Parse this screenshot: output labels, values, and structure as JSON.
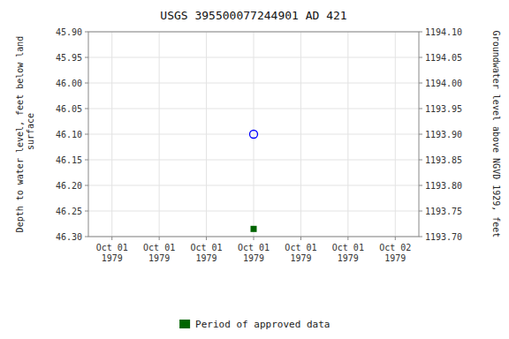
{
  "chart_data": {
    "type": "scatter",
    "title": "USGS 395500077244901 AD   421",
    "y_label": "Depth to water level, feet below land\n surface",
    "y2_label": "Groundwater level above NGVD 1929, feet",
    "categories": [
      "Oct 01\n1979",
      "Oct 01\n1979",
      "Oct 01\n1979",
      "Oct 01\n1979",
      "Oct 01\n1979",
      "Oct 01\n1979",
      "Oct 02\n1979"
    ],
    "ylim": [
      46.3,
      45.9
    ],
    "yticks": [
      {
        "value": 45.9,
        "label": "45.90"
      },
      45.95,
      {
        "value": 46.0,
        "label": "46.00"
      },
      46.05,
      {
        "value": 46.1,
        "label": "46.10"
      },
      46.15,
      {
        "value": 46.2,
        "label": "46.20"
      },
      46.25,
      {
        "value": 46.3,
        "label": "46.30"
      }
    ],
    "y2lim": [
      1193.7,
      1194.1
    ],
    "y2ticks": [
      {
        "value": 1193.7,
        "label": "1193.70"
      },
      1193.75,
      {
        "value": 1193.8,
        "label": "1193.80"
      },
      1193.85,
      {
        "value": 1193.9,
        "label": "1193.90"
      },
      1193.95,
      {
        "value": 1194.0,
        "label": "1194.00"
      },
      1194.05,
      {
        "value": 1194.1,
        "label": "1194.10"
      }
    ],
    "grid": true,
    "legend": "bottom",
    "series": [
      {
        "color": "blue",
        "marker": "open-circle",
        "values": [
          null,
          null,
          null,
          46.1,
          null,
          null,
          null
        ]
      },
      {
        "name": "Period of approved data",
        "color": "#006400",
        "marker": "square",
        "values": [
          null,
          null,
          null,
          46.285,
          null,
          null,
          null
        ]
      }
    ]
  }
}
